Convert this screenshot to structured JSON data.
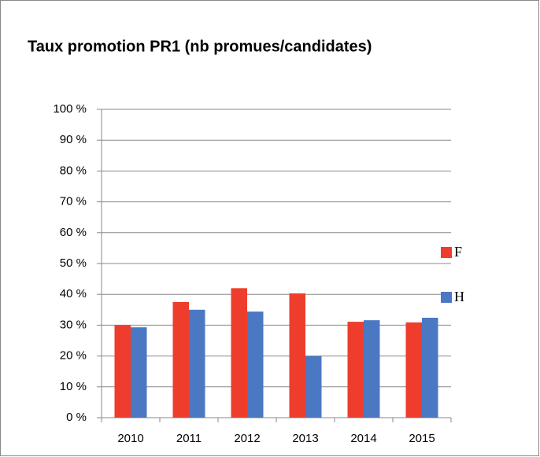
{
  "chart_data": {
    "type": "bar",
    "title": "Taux promotion PR1 (nb promues/candidates)",
    "categories": [
      "2010",
      "2011",
      "2012",
      "2013",
      "2014",
      "2015"
    ],
    "series": [
      {
        "name": "F",
        "color": "#ee3d2c",
        "values": [
          30,
          37.5,
          42,
          40.3,
          31.1,
          30.9
        ]
      },
      {
        "name": "H",
        "color": "#4b78c3",
        "values": [
          29.3,
          35,
          34.4,
          20,
          31.6,
          32.4
        ]
      }
    ],
    "ylim": [
      0,
      100
    ],
    "yticks": [
      {
        "value": 0,
        "label": "0 %"
      },
      {
        "value": 10,
        "label": "10 %"
      },
      {
        "value": 20,
        "label": "20 %"
      },
      {
        "value": 30,
        "label": "30 %"
      },
      {
        "value": 40,
        "label": "40 %"
      },
      {
        "value": 50,
        "label": "50 %"
      },
      {
        "value": 60,
        "label": "60 %"
      },
      {
        "value": 70,
        "label": "70 %"
      },
      {
        "value": 80,
        "label": "80 %"
      },
      {
        "value": 90,
        "label": "90 %"
      },
      {
        "value": 100,
        "label": "100 %"
      }
    ],
    "grid": true,
    "legend": "right"
  }
}
